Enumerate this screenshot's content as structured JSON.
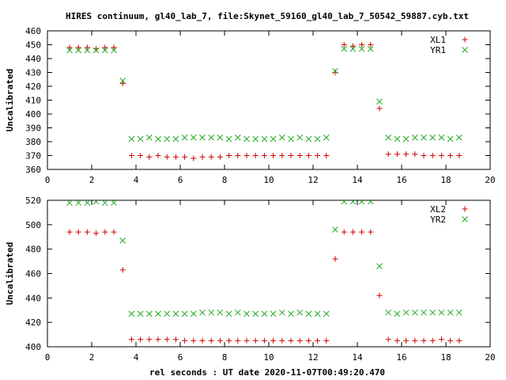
{
  "title": "HIRES continuum, gl40_lab_7, file:Skynet_59160_gl40_lab_7_50542_59887.cyb.txt",
  "xlabel": "rel seconds : UT date 2020-11-07T00:49:20.470",
  "colors": {
    "series1": "#cc0000",
    "series2": "#22aa22",
    "axis": "#000000"
  },
  "chart_data": [
    {
      "type": "scatter",
      "ylabel": "Uncalibrated",
      "xlim": [
        0,
        20
      ],
      "ylim": [
        360,
        460
      ],
      "xticks": [
        0,
        2,
        4,
        6,
        8,
        10,
        12,
        14,
        16,
        18,
        20
      ],
      "yticks": [
        360,
        370,
        380,
        390,
        400,
        410,
        420,
        430,
        440,
        450,
        460
      ],
      "legend_position": "top-right",
      "series": [
        {
          "name": "XL1",
          "marker": "plus",
          "x": [
            1.0,
            1.2,
            1.4,
            1.6,
            1.8,
            2.0,
            2.2,
            2.4,
            2.6,
            2.8,
            3.0,
            3.2,
            3.4,
            3.6,
            3.8,
            4.0,
            4.2,
            4.4,
            4.6,
            4.8,
            5.0,
            5.2,
            5.4,
            5.6,
            5.8,
            6.0,
            6.2,
            6.4,
            6.6,
            6.8,
            7.0,
            7.2,
            7.4,
            7.6,
            7.8,
            8.0,
            8.2,
            8.4,
            8.6,
            8.8,
            9.0,
            9.2,
            9.4,
            9.6,
            9.8,
            10.0,
            10.2,
            10.4,
            10.6,
            10.8,
            11.0,
            11.2,
            11.4,
            11.6,
            11.8,
            12.0,
            12.2,
            12.4,
            12.6,
            12.8,
            13.0,
            13.2,
            13.4,
            13.6,
            13.8,
            14.0,
            14.2,
            14.4,
            14.6,
            14.8,
            15.0,
            15.2,
            15.4,
            15.6,
            15.8,
            16.0,
            16.2,
            16.4,
            16.6,
            16.8,
            17.0,
            17.2,
            17.4,
            17.6,
            17.8,
            18.0,
            18.2,
            18.4,
            18.6,
            18.8
          ],
          "y": [
            448,
            448,
            448,
            448,
            448,
            448,
            447,
            448,
            448,
            448,
            448,
            448,
            422,
            370,
            370,
            370,
            370,
            369,
            369,
            369,
            370,
            369,
            369,
            370,
            369,
            369,
            369,
            368,
            368,
            369,
            369,
            369,
            369,
            370,
            369,
            370,
            370,
            370,
            370,
            371,
            370,
            370,
            370,
            370,
            370,
            370,
            370,
            370,
            370,
            370,
            370,
            370,
            370,
            370,
            370,
            370,
            370,
            370,
            370,
            374,
            430,
            449,
            450,
            450,
            449,
            450,
            450,
            449,
            450,
            445,
            404,
            371,
            371,
            369,
            371,
            371,
            371,
            370,
            371,
            370,
            370,
            370,
            370,
            370,
            370,
            370,
            370,
            370,
            370,
            371
          ],
          "display_x": [
            1.0,
            1.4,
            1.8,
            2.2,
            2.6,
            3.0,
            3.4,
            3.8,
            4.2,
            4.6,
            5.0,
            5.4,
            5.8,
            6.2,
            6.6,
            7.0,
            7.4,
            7.8,
            8.2,
            8.6,
            9.0,
            9.4,
            9.8,
            10.2,
            10.6,
            11.0,
            11.4,
            11.8,
            12.2,
            12.6,
            13.0,
            13.4,
            13.8,
            14.2,
            14.6,
            15.0,
            15.4,
            15.8,
            16.2,
            16.6,
            17.0,
            17.4,
            17.8,
            18.2,
            18.6
          ]
        },
        {
          "name": "YR1",
          "marker": "cross",
          "x": [
            1.0,
            1.2,
            1.4,
            1.6,
            1.8,
            2.0,
            2.2,
            2.4,
            2.6,
            2.8,
            3.0,
            3.2,
            3.4,
            3.6,
            3.8,
            4.0,
            4.2,
            4.4,
            4.6,
            4.8,
            5.0,
            5.2,
            5.4,
            5.6,
            5.8,
            6.0,
            6.2,
            6.4,
            6.6,
            6.8,
            7.0,
            7.2,
            7.4,
            7.6,
            7.8,
            8.0,
            8.2,
            8.4,
            8.6,
            8.8,
            9.0,
            9.2,
            9.4,
            9.6,
            9.8,
            10.0,
            10.2,
            10.4,
            10.6,
            10.8,
            11.0,
            11.2,
            11.4,
            11.6,
            11.8,
            12.0,
            12.2,
            12.4,
            12.6,
            12.8,
            13.0,
            13.2,
            13.4,
            13.6,
            13.8,
            14.0,
            14.2,
            14.4,
            14.6,
            14.8,
            15.0,
            15.2,
            15.4,
            15.6,
            15.8,
            16.0,
            16.2,
            16.4,
            16.6,
            16.8,
            17.0,
            17.2,
            17.4,
            17.6,
            17.8,
            18.0,
            18.2,
            18.4,
            18.6,
            18.8
          ],
          "y": [
            446,
            446,
            446,
            446,
            446,
            446,
            446,
            446,
            446,
            446,
            446,
            446,
            424,
            382,
            382,
            382,
            382,
            382,
            383,
            382,
            382,
            382,
            382,
            382,
            382,
            382,
            383,
            382,
            383,
            383,
            383,
            383,
            383,
            383,
            383,
            383,
            382,
            382,
            383,
            383,
            382,
            382,
            382,
            383,
            382,
            382,
            382,
            383,
            383,
            382,
            382,
            382,
            383,
            383,
            382,
            382,
            382,
            383,
            383,
            386,
            431,
            447,
            447,
            447,
            447,
            447,
            447,
            447,
            447,
            442,
            409,
            382,
            383,
            383,
            382,
            383,
            382,
            383,
            383,
            383,
            383,
            383,
            383,
            383,
            383,
            382,
            382,
            383,
            383,
            383
          ]
        }
      ]
    },
    {
      "type": "scatter",
      "ylabel": "Uncalibrated",
      "xlim": [
        0,
        20
      ],
      "ylim": [
        400,
        520
      ],
      "xticks": [
        0,
        2,
        4,
        6,
        8,
        10,
        12,
        14,
        16,
        18,
        20
      ],
      "yticks": [
        400,
        420,
        440,
        460,
        480,
        500,
        520
      ],
      "legend_position": "top-right",
      "series": [
        {
          "name": "XL2",
          "marker": "plus",
          "x": [
            1.0,
            1.2,
            1.4,
            1.6,
            1.8,
            2.0,
            2.2,
            2.4,
            2.6,
            2.8,
            3.0,
            3.2,
            3.4,
            3.6,
            3.8,
            4.0,
            4.2,
            4.4,
            4.6,
            4.8,
            5.0,
            5.2,
            5.4,
            5.6,
            5.8,
            6.0,
            6.2,
            6.4,
            6.6,
            6.8,
            7.0,
            7.2,
            7.4,
            7.6,
            7.8,
            8.0,
            8.2,
            8.4,
            8.6,
            8.8,
            9.0,
            9.2,
            9.4,
            9.6,
            9.8,
            10.0,
            10.2,
            10.4,
            10.6,
            10.8,
            11.0,
            11.2,
            11.4,
            11.6,
            11.8,
            12.0,
            12.2,
            12.4,
            12.6,
            12.8,
            13.0,
            13.2,
            13.4,
            13.6,
            13.8,
            14.0,
            14.2,
            14.4,
            14.6,
            14.8,
            15.0,
            15.2,
            15.4,
            15.6,
            15.8,
            16.0,
            16.2,
            16.4,
            16.6,
            16.8,
            17.0,
            17.2,
            17.4,
            17.6,
            17.8,
            18.0,
            18.2,
            18.4,
            18.6,
            18.8
          ],
          "y": [
            494,
            494,
            494,
            494,
            494,
            494,
            493,
            494,
            494,
            494,
            494,
            493,
            463,
            406,
            406,
            406,
            406,
            406,
            406,
            406,
            406,
            406,
            406,
            406,
            406,
            406,
            405,
            405,
            405,
            405,
            405,
            405,
            405,
            405,
            405,
            405,
            405,
            405,
            405,
            405,
            405,
            405,
            405,
            406,
            405,
            405,
            405,
            405,
            405,
            405,
            405,
            405,
            405,
            405,
            405,
            405,
            405,
            405,
            405,
            410,
            472,
            494,
            494,
            494,
            494,
            494,
            494,
            494,
            494,
            489,
            442,
            406,
            406,
            405,
            405,
            405,
            405,
            405,
            405,
            405,
            405,
            405,
            405,
            405,
            406,
            405,
            405,
            405,
            405,
            405
          ]
        },
        {
          "name": "YR2",
          "marker": "cross",
          "x": [
            1.0,
            1.2,
            1.4,
            1.6,
            1.8,
            2.0,
            2.2,
            2.4,
            2.6,
            2.8,
            3.0,
            3.2,
            3.4,
            3.6,
            3.8,
            4.0,
            4.2,
            4.4,
            4.6,
            4.8,
            5.0,
            5.2,
            5.4,
            5.6,
            5.8,
            6.0,
            6.2,
            6.4,
            6.6,
            6.8,
            7.0,
            7.2,
            7.4,
            7.6,
            7.8,
            8.0,
            8.2,
            8.4,
            8.6,
            8.8,
            9.0,
            9.2,
            9.4,
            9.6,
            9.8,
            10.0,
            10.2,
            10.4,
            10.6,
            10.8,
            11.0,
            11.2,
            11.4,
            11.6,
            11.8,
            12.0,
            12.2,
            12.4,
            12.6,
            12.8,
            13.0,
            13.2,
            13.4,
            13.6,
            13.8,
            14.0,
            14.2,
            14.4,
            14.6,
            14.8,
            15.0,
            15.2,
            15.4,
            15.6,
            15.8,
            16.0,
            16.2,
            16.4,
            16.6,
            16.8,
            17.0,
            17.2,
            17.4,
            17.6,
            17.8,
            18.0,
            18.2,
            18.4,
            18.6,
            18.8
          ],
          "y": [
            518,
            518,
            518,
            518,
            518,
            519,
            519,
            518,
            518,
            518,
            518,
            518,
            487,
            427,
            427,
            427,
            427,
            427,
            427,
            427,
            427,
            427,
            427,
            427,
            427,
            427,
            427,
            427,
            427,
            427,
            428,
            428,
            428,
            428,
            428,
            428,
            427,
            427,
            428,
            428,
            427,
            427,
            427,
            428,
            427,
            427,
            427,
            428,
            428,
            427,
            427,
            427,
            428,
            428,
            427,
            427,
            427,
            427,
            427,
            432,
            496,
            519,
            519,
            519,
            519,
            519,
            519,
            519,
            519,
            514,
            466,
            428,
            428,
            428,
            427,
            428,
            428,
            428,
            428,
            428,
            428,
            428,
            428,
            428,
            428,
            428,
            428,
            428,
            428,
            428
          ]
        }
      ]
    }
  ]
}
